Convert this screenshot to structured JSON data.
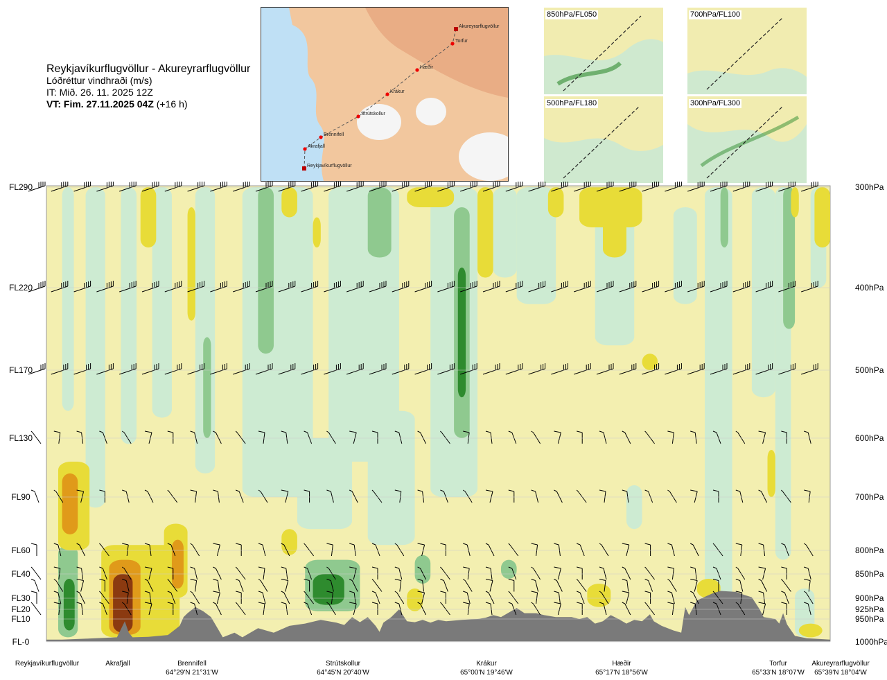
{
  "header": {
    "route": "Reykjavíkurflugvöllur - Akureyrarflugvöllur",
    "variable": "Lóðréttur vindhraði (m/s)",
    "initial_time": "IT: Mið. 26. 11. 2025 12Z",
    "valid_time": "VT: Fim. 27.11.2025 04Z",
    "valid_offset": "(+16 h)"
  },
  "route_map": {
    "waypoints": [
      {
        "name": "Akureyrarflugvöllur"
      },
      {
        "name": "Torfur"
      },
      {
        "name": "Hæðir"
      },
      {
        "name": "Krákur"
      },
      {
        "name": "Strútskollur"
      },
      {
        "name": "Brennifell"
      },
      {
        "name": "Akrafjall"
      },
      {
        "name": "Reykjavíkurflugvöllur"
      }
    ]
  },
  "level_maps": [
    {
      "label": "850hPa/FL050"
    },
    {
      "label": "700hPa/FL100"
    },
    {
      "label": "500hPa/FL180"
    },
    {
      "label": "300hPa/FL300"
    }
  ],
  "colors": {
    "strong_up": "#2e8b2e",
    "up": "#8fc98f",
    "weak_up": "#cdebd2",
    "neutral": "#f3efb0",
    "weak_down": "#e8dc38",
    "down": "#e09a1a",
    "strong_down": "#8b3a10",
    "terrain": "#7a7a7a"
  },
  "chart_data": {
    "type": "heatmap",
    "title": "Lóðréttur vindhraði (m/s)",
    "y_left_ticks": [
      "FL290",
      "FL220",
      "FL170",
      "FL130",
      "FL90",
      "FL60",
      "FL40",
      "FL30",
      "FL20",
      "FL10",
      "FL-0"
    ],
    "y_right_ticks": [
      "300hPa",
      "400hPa",
      "500hPa",
      "600hPa",
      "700hPa",
      "800hPa",
      "850hPa",
      "900hPa",
      "925hPa",
      "950hPa",
      "1000hPa"
    ],
    "y_ticks_hpa": [
      300,
      400,
      500,
      600,
      700,
      800,
      850,
      900,
      925,
      950,
      1000
    ],
    "ylim_hpa": [
      1000,
      300
    ],
    "x_waypoints": [
      {
        "name": "Reykjavíkurflugvöllur",
        "coords": "",
        "dist": 0.0
      },
      {
        "name": "Akrafjall",
        "coords": "",
        "dist": 0.098
      },
      {
        "name": "Brennifell",
        "coords": "64°29'N 21°31'W",
        "dist": 0.18
      },
      {
        "name": "Strútskollur",
        "coords": "64°45'N 20°40'W",
        "dist": 0.378
      },
      {
        "name": "Krákur",
        "coords": "65°00'N 19°46'W",
        "dist": 0.555
      },
      {
        "name": "Hæðir",
        "coords": "65°17'N 18°56'W",
        "dist": 0.734
      },
      {
        "name": "Torfur",
        "coords": "65°33'N 18°07'W",
        "dist": 0.946
      },
      {
        "name": "Akureyrarflugvöllur",
        "coords": "65°39'N 18°04'W",
        "dist": 1.0
      }
    ],
    "terrain_profile": [
      [
        0.0,
        995
      ],
      [
        0.02,
        995
      ],
      [
        0.05,
        993
      ],
      [
        0.09,
        990
      ],
      [
        0.1,
        955
      ],
      [
        0.105,
        980
      ],
      [
        0.11,
        990
      ],
      [
        0.13,
        989
      ],
      [
        0.155,
        985
      ],
      [
        0.17,
        965
      ],
      [
        0.175,
        945
      ],
      [
        0.18,
        935
      ],
      [
        0.19,
        920
      ],
      [
        0.2,
        930
      ],
      [
        0.21,
        945
      ],
      [
        0.22,
        975
      ],
      [
        0.225,
        990
      ],
      [
        0.24,
        980
      ],
      [
        0.25,
        990
      ],
      [
        0.27,
        970
      ],
      [
        0.29,
        980
      ],
      [
        0.31,
        965
      ],
      [
        0.33,
        960
      ],
      [
        0.35,
        952
      ],
      [
        0.37,
        958
      ],
      [
        0.38,
        963
      ],
      [
        0.39,
        945
      ],
      [
        0.4,
        957
      ],
      [
        0.41,
        945
      ],
      [
        0.42,
        965
      ],
      [
        0.425,
        978
      ],
      [
        0.43,
        958
      ],
      [
        0.44,
        945
      ],
      [
        0.45,
        925
      ],
      [
        0.46,
        955
      ],
      [
        0.47,
        957
      ],
      [
        0.48,
        952
      ],
      [
        0.49,
        958
      ],
      [
        0.5,
        952
      ],
      [
        0.51,
        955
      ],
      [
        0.53,
        952
      ],
      [
        0.55,
        950
      ],
      [
        0.56,
        947
      ],
      [
        0.57,
        940
      ],
      [
        0.58,
        945
      ],
      [
        0.6,
        922
      ],
      [
        0.61,
        935
      ],
      [
        0.625,
        935
      ],
      [
        0.635,
        940
      ],
      [
        0.65,
        945
      ],
      [
        0.67,
        945
      ],
      [
        0.68,
        950
      ],
      [
        0.69,
        945
      ],
      [
        0.7,
        960
      ],
      [
        0.71,
        955
      ],
      [
        0.72,
        940
      ],
      [
        0.73,
        950
      ],
      [
        0.74,
        960
      ],
      [
        0.75,
        952
      ],
      [
        0.76,
        955
      ],
      [
        0.77,
        938
      ],
      [
        0.775,
        955
      ],
      [
        0.785,
        965
      ],
      [
        0.8,
        975
      ],
      [
        0.81,
        980
      ],
      [
        0.815,
        920
      ],
      [
        0.82,
        940
      ],
      [
        0.83,
        905
      ],
      [
        0.85,
        890
      ],
      [
        0.86,
        885
      ],
      [
        0.88,
        887
      ],
      [
        0.89,
        893
      ],
      [
        0.9,
        898
      ],
      [
        0.91,
        925
      ],
      [
        0.915,
        945
      ],
      [
        0.93,
        950
      ],
      [
        0.935,
        960
      ],
      [
        0.94,
        935
      ],
      [
        0.945,
        962
      ],
      [
        0.955,
        987
      ],
      [
        0.97,
        992
      ],
      [
        1.0,
        995
      ]
    ],
    "wind_barb_rows_hpa": [
      300,
      400,
      500,
      600,
      700,
      800,
      850,
      875,
      900,
      925
    ],
    "contour_levels_m_s": [
      -2.0,
      -1.0,
      -0.5,
      -0.2,
      -0.05,
      0.05,
      0.2,
      0.5,
      1.0,
      2.0
    ]
  }
}
